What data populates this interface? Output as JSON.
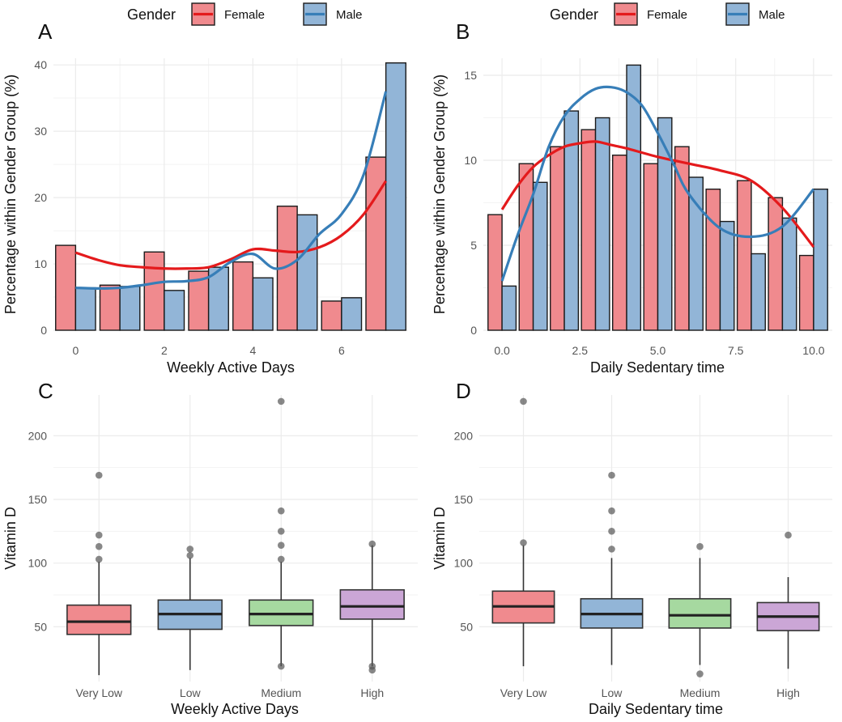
{
  "colors": {
    "female_fill": "#F08A8E",
    "female_line": "#E41A1C",
    "male_fill": "#92B5D7",
    "male_line": "#377EB8",
    "box_very_low": "#F08A8E",
    "box_low": "#92B5D7",
    "box_medium": "#A6D9A0",
    "box_high": "#CBA6D6",
    "grid": "#EBEBEB",
    "text": "#333333",
    "tick": "#555555"
  },
  "chart_data": [
    {
      "panel": "A",
      "type": "bar",
      "legend": {
        "title": "Gender",
        "entries": [
          "Female",
          "Male"
        ],
        "position": "top"
      },
      "xlabel": "Weekly Active Days",
      "ylabel": "Percentage within Gender Group (%)",
      "xlim": [
        -0.5,
        7.5
      ],
      "ylim": [
        0,
        41
      ],
      "xticks": [
        0,
        2,
        4,
        6
      ],
      "xtick_labels": [
        "0",
        "2",
        "4",
        "6"
      ],
      "yticks": [
        0,
        10,
        20,
        30,
        40
      ],
      "ytick_labels": [
        "0",
        "10",
        "20",
        "30",
        "40"
      ],
      "x": [
        0,
        1,
        2,
        3,
        4,
        5,
        6,
        7
      ],
      "series": [
        {
          "name": "Female",
          "values": [
            12.8,
            6.8,
            11.8,
            8.9,
            10.3,
            18.7,
            4.4,
            26.1
          ],
          "smooth": [
            [
              0,
              11.7
            ],
            [
              0.5,
              10.6
            ],
            [
              1,
              9.8
            ],
            [
              1.5,
              9.5
            ],
            [
              2,
              9.3
            ],
            [
              2.5,
              9.3
            ],
            [
              3,
              9.5
            ],
            [
              3.5,
              10.7
            ],
            [
              4,
              12.2
            ],
            [
              4.5,
              12.0
            ],
            [
              5,
              11.8
            ],
            [
              5.5,
              12.5
            ],
            [
              6,
              14.3
            ],
            [
              6.5,
              17.5
            ],
            [
              7,
              22.5
            ]
          ]
        },
        {
          "name": "Male",
          "values": [
            6.4,
            6.6,
            6.0,
            9.5,
            7.9,
            17.4,
            4.9,
            40.3
          ],
          "smooth": [
            [
              0,
              6.4
            ],
            [
              0.5,
              6.3
            ],
            [
              1,
              6.4
            ],
            [
              1.5,
              6.8
            ],
            [
              2,
              7.3
            ],
            [
              2.5,
              7.4
            ],
            [
              3,
              8.0
            ],
            [
              3.5,
              10.3
            ],
            [
              4,
              11.5
            ],
            [
              4.5,
              9.3
            ],
            [
              5,
              10.6
            ],
            [
              5.5,
              14.5
            ],
            [
              6,
              17.5
            ],
            [
              6.5,
              23.5
            ],
            [
              7,
              36.0
            ]
          ]
        }
      ]
    },
    {
      "panel": "B",
      "type": "bar",
      "legend": {
        "title": "Gender",
        "entries": [
          "Female",
          "Male"
        ],
        "position": "top"
      },
      "xlabel": "Daily Sedentary time",
      "ylabel": "Percentage within Gender Group (%)",
      "xlim": [
        -0.6,
        10.6
      ],
      "ylim": [
        0,
        16
      ],
      "xticks": [
        0,
        2.5,
        5,
        7.5,
        10
      ],
      "xtick_labels": [
        "0.0",
        "2.5",
        "5.0",
        "7.5",
        "10.0"
      ],
      "yticks": [
        0,
        5,
        10,
        15
      ],
      "ytick_labels": [
        "0",
        "5",
        "10",
        "15"
      ],
      "x": [
        0,
        1,
        2,
        3,
        4,
        5,
        6,
        7,
        8,
        9,
        10
      ],
      "series": [
        {
          "name": "Female",
          "values": [
            6.8,
            9.8,
            10.8,
            11.8,
            10.3,
            9.8,
            10.8,
            8.3,
            8.8,
            7.8,
            4.4
          ],
          "smooth": [
            [
              0,
              7.1
            ],
            [
              0.5,
              8.5
            ],
            [
              1,
              9.6
            ],
            [
              1.5,
              10.3
            ],
            [
              2,
              10.8
            ],
            [
              2.5,
              11.0
            ],
            [
              3,
              11.1
            ],
            [
              3.5,
              10.9
            ],
            [
              4,
              10.7
            ],
            [
              5,
              10.2
            ],
            [
              6,
              9.8
            ],
            [
              7,
              9.4
            ],
            [
              8,
              8.8
            ],
            [
              9,
              7.2
            ],
            [
              10,
              4.9
            ]
          ]
        },
        {
          "name": "Male",
          "values": [
            2.6,
            8.7,
            12.9,
            12.5,
            15.6,
            12.5,
            9.0,
            6.4,
            4.5,
            6.6,
            8.3
          ],
          "smooth": [
            [
              0,
              2.9
            ],
            [
              0.5,
              5.6
            ],
            [
              1,
              8.0
            ],
            [
              1.5,
              10.8
            ],
            [
              2,
              12.6
            ],
            [
              2.5,
              13.6
            ],
            [
              3,
              14.2
            ],
            [
              3.5,
              14.3
            ],
            [
              4,
              14.0
            ],
            [
              4.5,
              13.2
            ],
            [
              5,
              11.6
            ],
            [
              5.5,
              9.8
            ],
            [
              6,
              8.0
            ],
            [
              7,
              6.0
            ],
            [
              8,
              5.5
            ],
            [
              9,
              6.1
            ],
            [
              10,
              8.3
            ]
          ]
        }
      ]
    },
    {
      "panel": "C",
      "type": "box",
      "xlabel": "Weekly Active Days",
      "ylabel": "Vitamin D",
      "categories": [
        "Very Low",
        "Low",
        "Medium",
        "High"
      ],
      "ylim": [
        7,
        232
      ],
      "yticks": [
        50,
        100,
        150,
        200
      ],
      "ytick_labels": [
        "50",
        "100",
        "150",
        "200"
      ],
      "boxes": [
        {
          "category": "Very Low",
          "whisker_low": 12,
          "q1": 44,
          "median": 54,
          "q3": 67,
          "whisker_high": 101,
          "outliers": [
            103,
            113,
            122,
            169
          ]
        },
        {
          "category": "Low",
          "whisker_low": 16,
          "q1": 48,
          "median": 60,
          "q3": 71,
          "whisker_high": 104,
          "outliers": [
            106,
            111
          ]
        },
        {
          "category": "Medium",
          "whisker_low": 19,
          "q1": 51,
          "median": 60,
          "q3": 71,
          "whisker_high": 101,
          "outliers": [
            19,
            103,
            114,
            125,
            141,
            227
          ]
        },
        {
          "category": "High",
          "whisker_low": 19,
          "q1": 56,
          "median": 66,
          "q3": 79,
          "whisker_high": 114,
          "outliers": [
            16,
            19,
            115
          ]
        }
      ]
    },
    {
      "panel": "D",
      "type": "box",
      "xlabel": "Daily Sedentary time",
      "ylabel": "Vitamin D",
      "categories": [
        "Very Low",
        "Low",
        "Medium",
        "High"
      ],
      "ylim": [
        7,
        232
      ],
      "yticks": [
        50,
        100,
        150,
        200
      ],
      "ytick_labels": [
        "50",
        "100",
        "150",
        "200"
      ],
      "boxes": [
        {
          "category": "Very Low",
          "whisker_low": 19,
          "q1": 53,
          "median": 66,
          "q3": 78,
          "whisker_high": 114,
          "outliers": [
            116,
            227
          ]
        },
        {
          "category": "Low",
          "whisker_low": 20,
          "q1": 49,
          "median": 60,
          "q3": 72,
          "whisker_high": 104,
          "outliers": [
            111,
            125,
            141,
            169
          ]
        },
        {
          "category": "Medium",
          "whisker_low": 20,
          "q1": 49,
          "median": 59,
          "q3": 72,
          "whisker_high": 104,
          "outliers": [
            13,
            113
          ]
        },
        {
          "category": "High",
          "whisker_low": 17,
          "q1": 47,
          "median": 58,
          "q3": 69,
          "whisker_high": 89,
          "outliers": [
            122
          ]
        }
      ]
    }
  ]
}
